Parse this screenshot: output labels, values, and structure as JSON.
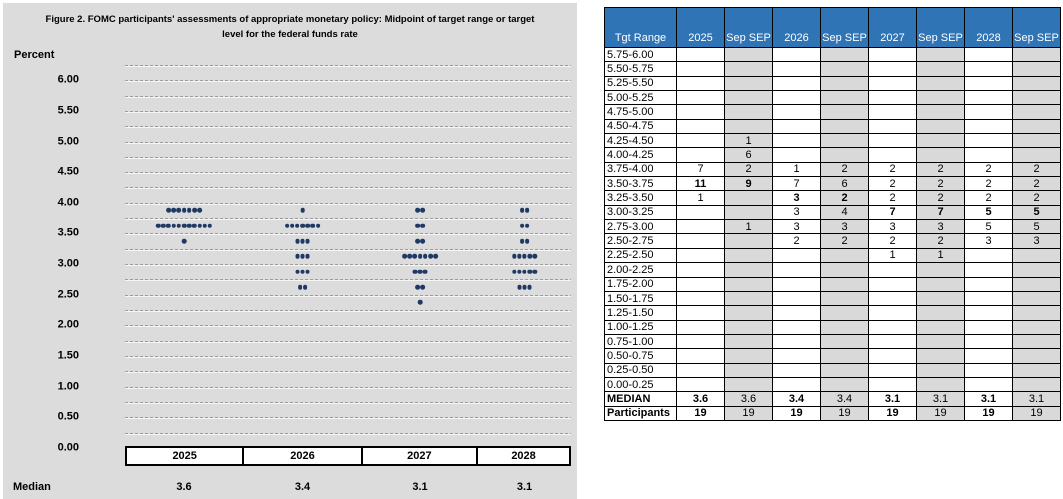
{
  "figure": {
    "title": "Figure 2. FOMC participants' assessments of appropriate monetary policy: Midpoint of target range or target level for the federal funds rate",
    "y_axis_label": "Percent",
    "median_label": "Median",
    "years": [
      "2025",
      "2026",
      "2027",
      "2028"
    ],
    "medians": [
      "3.6",
      "3.4",
      "3.1",
      "3.1"
    ]
  },
  "chart_data": {
    "type": "scatter",
    "title": "Figure 2. FOMC participants' assessments of appropriate monetary policy: Midpoint of target range or target level for the federal funds rate",
    "xlabel": "",
    "ylabel": "Percent",
    "ylim": [
      0,
      6.25
    ],
    "grid": "dashed",
    "grid_step": 0.25,
    "legend": "none",
    "ytick_labels": [
      "6.00",
      "5.50",
      "5.00",
      "4.50",
      "4.00",
      "3.50",
      "3.00",
      "2.50",
      "2.00",
      "1.50",
      "1.00",
      "0.50",
      "0.00"
    ],
    "x_categories": [
      "2025",
      "2026",
      "2027",
      "2028"
    ],
    "series": [
      {
        "name": "2025",
        "points": [
          {
            "y": 3.875,
            "count": 7
          },
          {
            "y": 3.625,
            "count": 11
          },
          {
            "y": 3.375,
            "count": 1
          }
        ]
      },
      {
        "name": "2026",
        "points": [
          {
            "y": 3.875,
            "count": 1
          },
          {
            "y": 3.625,
            "count": 7
          },
          {
            "y": 3.375,
            "count": 3
          },
          {
            "y": 3.125,
            "count": 3
          },
          {
            "y": 2.875,
            "count": 3
          },
          {
            "y": 2.625,
            "count": 2
          }
        ]
      },
      {
        "name": "2027",
        "points": [
          {
            "y": 3.875,
            "count": 2
          },
          {
            "y": 3.625,
            "count": 2
          },
          {
            "y": 3.375,
            "count": 2
          },
          {
            "y": 3.125,
            "count": 7
          },
          {
            "y": 2.875,
            "count": 3
          },
          {
            "y": 2.625,
            "count": 2
          },
          {
            "y": 2.375,
            "count": 1
          }
        ]
      },
      {
        "name": "2028",
        "points": [
          {
            "y": 3.875,
            "count": 2
          },
          {
            "y": 3.625,
            "count": 2
          },
          {
            "y": 3.375,
            "count": 2
          },
          {
            "y": 3.125,
            "count": 5
          },
          {
            "y": 2.875,
            "count": 5
          },
          {
            "y": 2.625,
            "count": 3
          }
        ]
      }
    ],
    "medians": [
      3.6,
      3.4,
      3.1,
      3.1
    ]
  },
  "table": {
    "headers": [
      "Tgt Range",
      "2025",
      "Sep SEP",
      "2026",
      "Sep SEP",
      "2027",
      "Sep SEP",
      "2028",
      "Sep SEP"
    ],
    "rows": [
      {
        "range": "5.75-6.00",
        "values": [
          "",
          "",
          "",
          "",
          "",
          "",
          "",
          ""
        ]
      },
      {
        "range": "5.50-5.75",
        "values": [
          "",
          "",
          "",
          "",
          "",
          "",
          "",
          ""
        ]
      },
      {
        "range": "5.25-5.50",
        "values": [
          "",
          "",
          "",
          "",
          "",
          "",
          "",
          ""
        ]
      },
      {
        "range": "5.00-5.25",
        "values": [
          "",
          "",
          "",
          "",
          "",
          "",
          "",
          ""
        ]
      },
      {
        "range": "4.75-5.00",
        "values": [
          "",
          "",
          "",
          "",
          "",
          "",
          "",
          ""
        ]
      },
      {
        "range": "4.50-4.75",
        "values": [
          "",
          "",
          "",
          "",
          "",
          "",
          "",
          ""
        ]
      },
      {
        "range": "4.25-4.50",
        "values": [
          "",
          "1",
          "",
          "",
          "",
          "",
          "",
          ""
        ]
      },
      {
        "range": "4.00-4.25",
        "values": [
          "",
          "6",
          "",
          "",
          "",
          "",
          "",
          ""
        ]
      },
      {
        "range": "3.75-4.00",
        "values": [
          "7",
          "2",
          "1",
          "2",
          "2",
          "2",
          "2",
          "2"
        ]
      },
      {
        "range": "3.50-3.75",
        "values": [
          "11",
          "9",
          "7",
          "6",
          "2",
          "2",
          "2",
          "2"
        ],
        "bold": [
          0,
          1
        ]
      },
      {
        "range": "3.25-3.50",
        "values": [
          "1",
          "",
          "3",
          "2",
          "2",
          "2",
          "2",
          "2"
        ],
        "bold": [
          2,
          3
        ]
      },
      {
        "range": "3.00-3.25",
        "values": [
          "",
          "",
          "3",
          "4",
          "7",
          "7",
          "5",
          "5"
        ],
        "bold": [
          4,
          5,
          6,
          7
        ]
      },
      {
        "range": "2.75-3.00",
        "values": [
          "",
          "1",
          "3",
          "3",
          "3",
          "3",
          "5",
          "5"
        ]
      },
      {
        "range": "2.50-2.75",
        "values": [
          "",
          "",
          "2",
          "2",
          "2",
          "2",
          "3",
          "3"
        ]
      },
      {
        "range": "2.25-2.50",
        "values": [
          "",
          "",
          "",
          "",
          "1",
          "1",
          "",
          ""
        ]
      },
      {
        "range": "2.00-2.25",
        "values": [
          "",
          "",
          "",
          "",
          "",
          "",
          "",
          ""
        ]
      },
      {
        "range": "1.75-2.00",
        "values": [
          "",
          "",
          "",
          "",
          "",
          "",
          "",
          ""
        ]
      },
      {
        "range": "1.50-1.75",
        "values": [
          "",
          "",
          "",
          "",
          "",
          "",
          "",
          ""
        ]
      },
      {
        "range": "1.25-1.50",
        "values": [
          "",
          "",
          "",
          "",
          "",
          "",
          "",
          ""
        ]
      },
      {
        "range": "1.00-1.25",
        "values": [
          "",
          "",
          "",
          "",
          "",
          "",
          "",
          ""
        ]
      },
      {
        "range": "0.75-1.00",
        "values": [
          "",
          "",
          "",
          "",
          "",
          "",
          "",
          ""
        ]
      },
      {
        "range": "0.50-0.75",
        "values": [
          "",
          "",
          "",
          "",
          "",
          "",
          "",
          ""
        ]
      },
      {
        "range": "0.25-0.50",
        "values": [
          "",
          "",
          "",
          "",
          "",
          "",
          "",
          ""
        ]
      },
      {
        "range": "0.00-0.25",
        "values": [
          "",
          "",
          "",
          "",
          "",
          "",
          "",
          ""
        ]
      }
    ],
    "median_row": {
      "label": "MEDIAN",
      "values": [
        "3.6",
        "3.6",
        "3.4",
        "3.4",
        "3.1",
        "3.1",
        "3.1",
        "3.1"
      ],
      "bold": [
        0,
        2,
        4,
        6
      ]
    },
    "participants_row": {
      "label": "Participants",
      "values": [
        "19",
        "19",
        "19",
        "19",
        "19",
        "19",
        "19",
        "19"
      ],
      "bold": [
        0,
        2,
        4,
        6
      ]
    }
  },
  "colors": {
    "header_blue": "#2f74b5",
    "panel_gray": "#dcdcdc",
    "stripe_gray": "#d9d9d9",
    "dot_navy": "#1f3864",
    "grid_gray": "#9b9b9b"
  }
}
